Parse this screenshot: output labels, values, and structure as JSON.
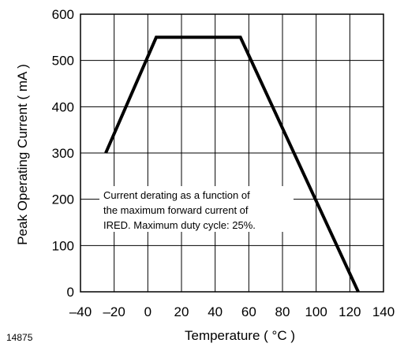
{
  "chart_data": {
    "type": "line",
    "figure_id": "14875",
    "xlabel": "Temperature ( °C )",
    "ylabel": "Peak Operating Current ( mA )",
    "xlim": [
      -40,
      140
    ],
    "ylim": [
      0,
      600
    ],
    "x_ticks": [
      -40,
      -20,
      0,
      20,
      40,
      60,
      80,
      100,
      120,
      140
    ],
    "x_tick_labels": [
      "–40",
      "–20",
      "0",
      "20",
      "40",
      "60",
      "80",
      "100",
      "120",
      "140"
    ],
    "y_ticks": [
      0,
      100,
      200,
      300,
      400,
      500,
      600
    ],
    "y_tick_labels": [
      "0",
      "100",
      "200",
      "300",
      "400",
      "500",
      "600"
    ],
    "grid": true,
    "annotation": [
      "Current derating as a function of",
      "the maximum forward current of",
      "IRED. Maximum duty cycle: 25%."
    ],
    "series": [
      {
        "x": [
          -25,
          5,
          55,
          125
        ],
        "y": [
          300,
          550,
          550,
          0
        ]
      }
    ]
  }
}
